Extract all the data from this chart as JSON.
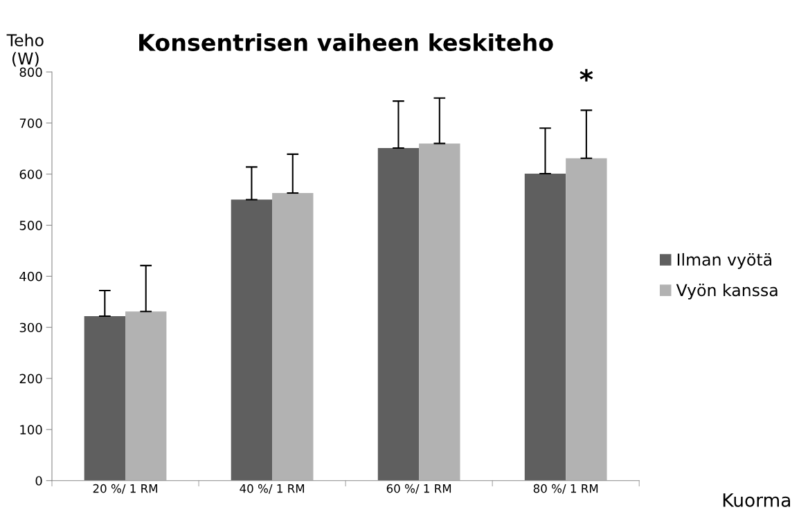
{
  "chart_data": {
    "type": "bar",
    "title": "Konsentrisen vaiheen keskiteho",
    "ylabel": "Teho\n(W)",
    "xlabel": "Kuorma",
    "categories": [
      "20 %/ 1 RM",
      "40 %/ 1 RM",
      "60 %/ 1 RM",
      "80 %/ 1 RM"
    ],
    "series": [
      {
        "name": "Ilman vyötä",
        "color": "#5f5f5f",
        "values": [
          322,
          550,
          651,
          601
        ],
        "errors": [
          [
            322,
            372
          ],
          [
            550,
            614
          ],
          [
            651,
            743
          ],
          [
            601,
            690
          ]
        ]
      },
      {
        "name": "Vyön kanssa",
        "color": "#b2b2b2",
        "values": [
          331,
          563,
          660,
          631
        ],
        "errors": [
          [
            331,
            421
          ],
          [
            563,
            639
          ],
          [
            660,
            749
          ],
          [
            631,
            725
          ]
        ]
      }
    ],
    "ylim": [
      0,
      800
    ],
    "yticks": [
      0,
      100,
      200,
      300,
      400,
      500,
      600,
      700,
      800
    ],
    "grid": false,
    "legend": "right",
    "annotations": [
      "*"
    ]
  }
}
